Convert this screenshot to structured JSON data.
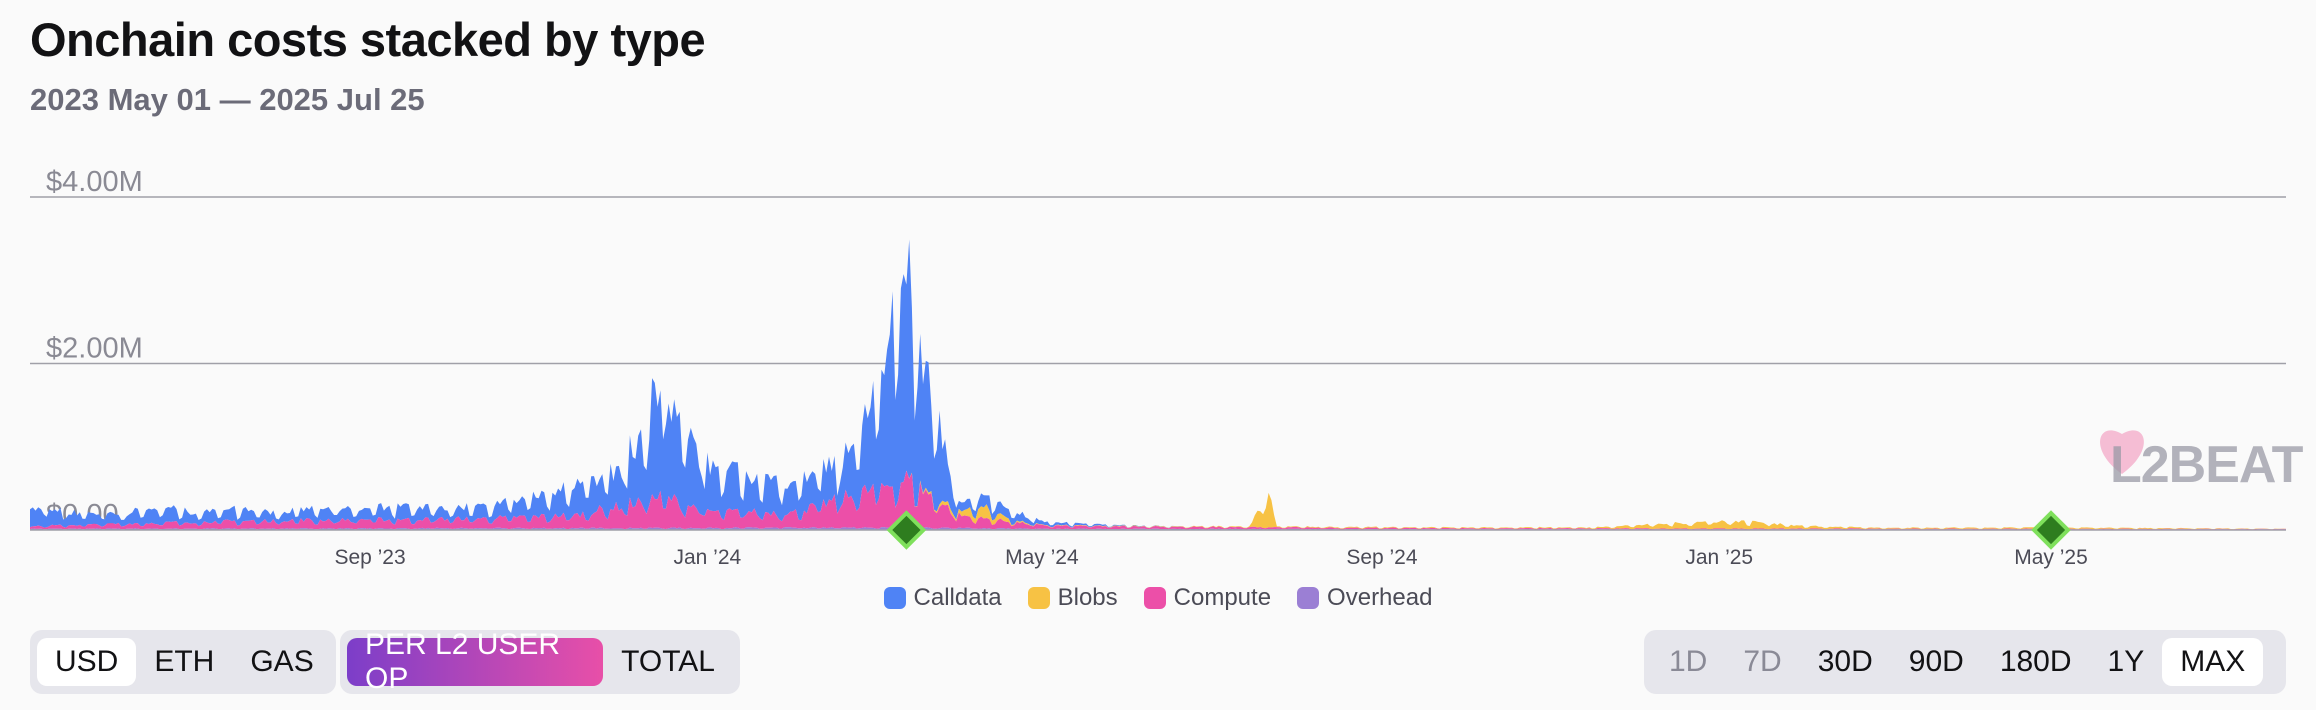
{
  "title": "Onchain costs stacked by type",
  "subtitle": "2023 May 01 — 2025 Jul 25",
  "controls": {
    "unit_buttons": [
      "USD",
      "ETH",
      "GAS"
    ],
    "unit_selected": "USD",
    "metric_buttons": [
      "PER L2 USER OP",
      "TOTAL"
    ],
    "metric_selected": "PER L2 USER OP",
    "range_buttons": [
      "1D",
      "7D",
      "30D",
      "90D",
      "180D",
      "1Y",
      "MAX"
    ],
    "range_disabled": [
      "1D",
      "7D"
    ],
    "range_selected": "MAX"
  },
  "watermark": "L2BEAT",
  "colors": {
    "calldata": "#4f83f5",
    "blobs": "#f7c244",
    "compute": "#ec4fa8",
    "overhead": "#9b7fd4",
    "marker": "#2e7d1f",
    "marker_outline": "#7fe05c"
  },
  "chart_data": {
    "type": "area",
    "stacked": true,
    "y_tick_labels": [
      "$0.00",
      "$2.00M",
      "$4.00M"
    ],
    "ylim": [
      0,
      4000000
    ],
    "x_tick_labels": [
      "Sep '23",
      "Jan '24",
      "May '24",
      "Sep '24",
      "Jan '25",
      "May '25"
    ],
    "x_range": [
      "2023-05-01",
      "2025-07-25"
    ],
    "legend": "bottom-center",
    "grid": true,
    "series": [
      {
        "name": "Calldata",
        "color_key": "calldata",
        "points": [
          [
            "2023-05-01",
            240000
          ],
          [
            "2023-05-15",
            160000
          ],
          [
            "2023-06-01",
            120000
          ],
          [
            "2023-06-15",
            180000
          ],
          [
            "2023-07-01",
            130000
          ],
          [
            "2023-07-15",
            150000
          ],
          [
            "2023-08-01",
            110000
          ],
          [
            "2023-08-15",
            160000
          ],
          [
            "2023-09-01",
            130000
          ],
          [
            "2023-09-15",
            170000
          ],
          [
            "2023-10-01",
            120000
          ],
          [
            "2023-10-15",
            160000
          ],
          [
            "2023-11-01",
            250000
          ],
          [
            "2023-11-15",
            340000
          ],
          [
            "2023-12-01",
            470000
          ],
          [
            "2023-12-10",
            900000
          ],
          [
            "2023-12-16",
            1700000
          ],
          [
            "2023-12-20",
            1100000
          ],
          [
            "2024-01-01",
            550000
          ],
          [
            "2024-01-15",
            430000
          ],
          [
            "2024-02-01",
            400000
          ],
          [
            "2024-02-15",
            420000
          ],
          [
            "2024-02-25",
            700000
          ],
          [
            "2024-03-05",
            1500000
          ],
          [
            "2024-03-10",
            2300000
          ],
          [
            "2024-03-13",
            2500000
          ],
          [
            "2024-03-20",
            1500000
          ],
          [
            "2024-04-01",
            100000
          ],
          [
            "2024-04-15",
            160000
          ],
          [
            "2024-05-01",
            40000
          ],
          [
            "2024-06-01",
            5000
          ],
          [
            "2024-07-01",
            0
          ],
          [
            "2025-07-25",
            0
          ]
        ]
      },
      {
        "name": "Blobs",
        "color_key": "blobs",
        "points": [
          [
            "2024-03-13",
            0
          ],
          [
            "2024-04-01",
            50000
          ],
          [
            "2024-04-10",
            160000
          ],
          [
            "2024-04-20",
            20000
          ],
          [
            "2024-05-01",
            5000
          ],
          [
            "2024-07-15",
            8000
          ],
          [
            "2024-07-22",
            400000
          ],
          [
            "2024-07-25",
            10000
          ],
          [
            "2024-11-15",
            10000
          ],
          [
            "2024-12-15",
            60000
          ],
          [
            "2025-01-01",
            90000
          ],
          [
            "2025-01-15",
            80000
          ],
          [
            "2025-02-01",
            30000
          ],
          [
            "2025-03-01",
            10000
          ],
          [
            "2025-05-01",
            15000
          ],
          [
            "2025-07-25",
            3000
          ]
        ]
      },
      {
        "name": "Compute",
        "color_key": "compute",
        "points": [
          [
            "2023-05-01",
            30000
          ],
          [
            "2023-06-15",
            70000
          ],
          [
            "2023-08-01",
            100000
          ],
          [
            "2023-09-15",
            110000
          ],
          [
            "2023-10-15",
            120000
          ],
          [
            "2023-11-15",
            160000
          ],
          [
            "2023-12-16",
            380000
          ],
          [
            "2024-01-01",
            200000
          ],
          [
            "2024-02-01",
            180000
          ],
          [
            "2024-03-05",
            500000
          ],
          [
            "2024-03-13",
            600000
          ],
          [
            "2024-04-01",
            150000
          ],
          [
            "2024-05-01",
            40000
          ],
          [
            "2024-06-01",
            30000
          ],
          [
            "2024-07-01",
            25000
          ],
          [
            "2024-09-01",
            15000
          ],
          [
            "2024-12-01",
            10000
          ],
          [
            "2025-07-25",
            5000
          ]
        ]
      },
      {
        "name": "Overhead",
        "color_key": "overhead",
        "points": [
          [
            "2023-05-01",
            15000
          ],
          [
            "2023-12-16",
            25000
          ],
          [
            "2024-03-13",
            30000
          ],
          [
            "2024-05-01",
            15000
          ],
          [
            "2024-09-01",
            10000
          ],
          [
            "2025-07-25",
            8000
          ]
        ]
      }
    ],
    "markers": [
      {
        "date": "2024-03-13",
        "value": 0
      },
      {
        "date": "2025-05-01",
        "value": 0
      }
    ]
  }
}
